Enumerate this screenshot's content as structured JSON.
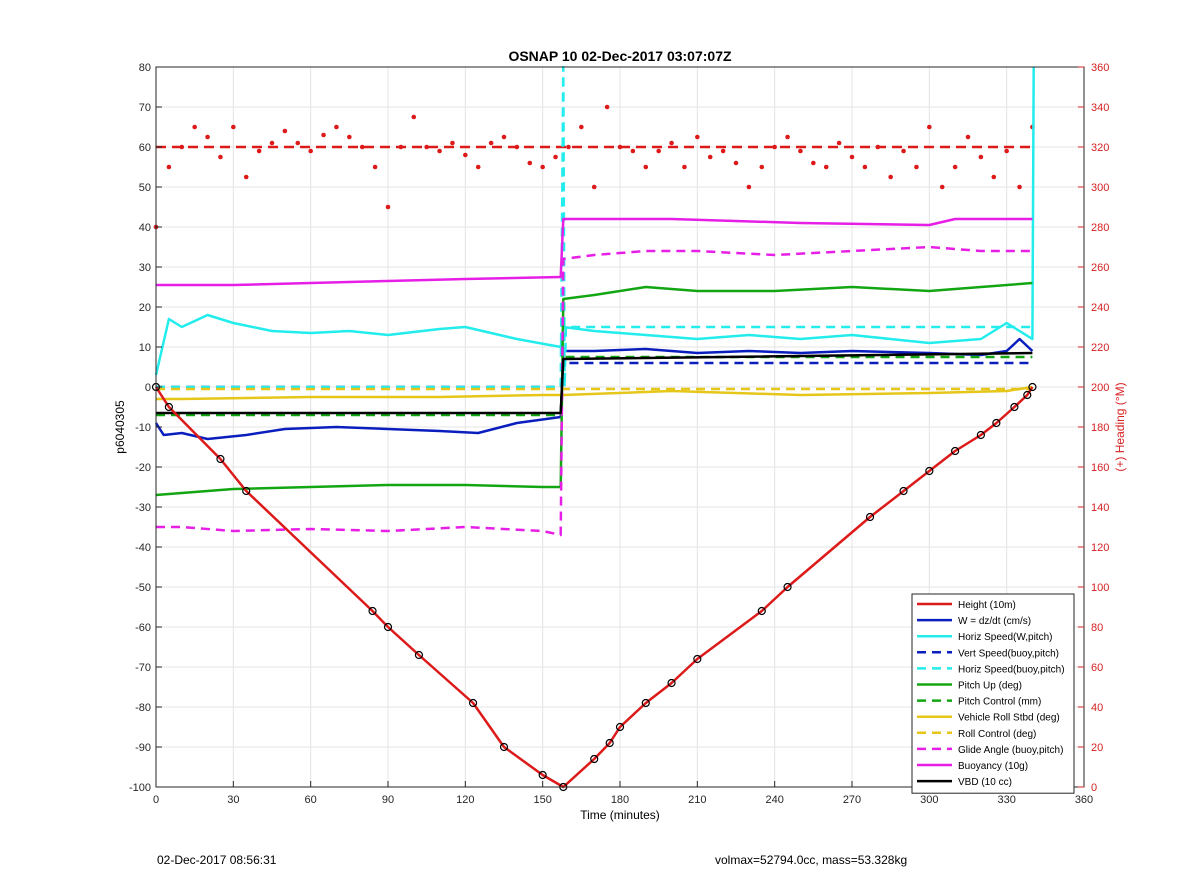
{
  "chart_data": {
    "type": "line",
    "title": "OSNAP 10 02-Dec-2017 03:07:07Z",
    "xlabel": "Time (minutes)",
    "ylabel": "p6040305",
    "y2label": "(+) Heading (°M)",
    "xlim": [
      0,
      360
    ],
    "ylim": [
      -100,
      80
    ],
    "y2lim": [
      0,
      360
    ],
    "xticks": [
      0,
      30,
      60,
      90,
      120,
      150,
      180,
      210,
      240,
      270,
      300,
      330,
      360
    ],
    "yticks": [
      80,
      70,
      60,
      50,
      40,
      30,
      20,
      10,
      0,
      -10,
      -20,
      -30,
      -40,
      -50,
      -60,
      -70,
      -80,
      -90,
      -100
    ],
    "y2ticks": [
      360,
      340,
      320,
      300,
      280,
      260,
      240,
      220,
      200,
      180,
      160,
      140,
      120,
      100,
      80,
      60,
      40,
      20,
      0
    ],
    "grid": true,
    "legend_position": "bottom-right",
    "colors": {
      "red": "#dd1a1a",
      "blue": "#0a1ebe",
      "cyan": "#22ecec",
      "green": "#13a613",
      "yellow": "#e6c619",
      "magenta": "#e61ee6",
      "black": "#000000",
      "heading_axis": "#d62020"
    },
    "series": [
      {
        "name": "Height (10m)",
        "color": "#dd1a1a",
        "style": "solid",
        "x": [
          0,
          5,
          25,
          35,
          84,
          90,
          102,
          123,
          135,
          150,
          158,
          170,
          176,
          180,
          190,
          200,
          210,
          235,
          245,
          277,
          290,
          300,
          310,
          320,
          326,
          333,
          338,
          340
        ],
        "y": [
          0,
          -5,
          -18,
          -26,
          -56,
          -60,
          -67,
          -79,
          -90,
          -97,
          -100,
          -93,
          -89,
          -85,
          -79,
          -74,
          -68,
          -56,
          -50,
          -32.5,
          -26,
          -21,
          -16,
          -12,
          -9,
          -5,
          -2,
          0
        ]
      },
      {
        "name": "W = dz/dt (cm/s)",
        "color": "#0a1ebe",
        "style": "solid",
        "x": [
          0,
          3,
          10,
          20,
          35,
          50,
          70,
          90,
          110,
          125,
          140,
          157,
          158,
          170,
          190,
          210,
          230,
          250,
          270,
          300,
          320,
          330,
          335,
          340
        ],
        "y": [
          -9,
          -12,
          -11.5,
          -13,
          -12,
          -10.5,
          -10,
          -10.5,
          -11,
          -11.5,
          -9,
          -7.5,
          9,
          9,
          9.5,
          8.5,
          9,
          8.5,
          9,
          8.5,
          8,
          9,
          12,
          9
        ]
      },
      {
        "name": "Horiz Speed(W,pitch)",
        "color": "#22ecec",
        "style": "solid",
        "x": [
          0,
          5,
          10,
          20,
          30,
          45,
          60,
          75,
          90,
          110,
          120,
          140,
          157,
          158,
          170,
          190,
          210,
          230,
          250,
          270,
          300,
          320,
          330,
          340,
          340.5
        ],
        "y": [
          3,
          17,
          15,
          18,
          16,
          14,
          13.5,
          14,
          13,
          14.5,
          15,
          12,
          10,
          15,
          14,
          13,
          12,
          13,
          12,
          13,
          11,
          12,
          16,
          12,
          80
        ]
      },
      {
        "name": "Vert Speed(buoy,pitch)",
        "color": "#0a1ebe",
        "style": "dashed",
        "x": [
          0,
          157,
          158,
          340
        ],
        "y": [
          0,
          0,
          6,
          6
        ]
      },
      {
        "name": "Horiz Speed(buoy,pitch)",
        "color": "#22ecec",
        "style": "dashed",
        "x": [
          0,
          157,
          158,
          158.5,
          159,
          340
        ],
        "y": [
          0,
          0,
          80,
          0,
          15,
          15
        ]
      },
      {
        "name": "Pitch Up (deg)",
        "color": "#13a613",
        "style": "solid",
        "x": [
          0,
          10,
          30,
          60,
          90,
          120,
          150,
          157,
          158,
          170,
          190,
          210,
          240,
          270,
          300,
          320,
          340
        ],
        "y": [
          -27,
          -26.5,
          -25.5,
          -25,
          -24.5,
          -24.5,
          -25,
          -25,
          22,
          23,
          25,
          24,
          24,
          25,
          24,
          25,
          26
        ]
      },
      {
        "name": "Pitch Control (mm)",
        "color": "#13a613",
        "style": "dashed",
        "x": [
          0,
          157,
          158,
          340
        ],
        "y": [
          -7,
          -7,
          7.5,
          7.5
        ]
      },
      {
        "name": "Vehicle Roll Stbd (deg)",
        "color": "#e6c619",
        "style": "solid",
        "x": [
          0,
          10,
          60,
          110,
          150,
          157,
          158,
          200,
          250,
          300,
          330,
          340
        ],
        "y": [
          -3,
          -3,
          -2.5,
          -2.5,
          -2,
          -2,
          -2,
          -1,
          -2,
          -1.5,
          -1,
          0
        ]
      },
      {
        "name": "Roll Control (deg)",
        "color": "#e6c619",
        "style": "dashed",
        "x": [
          0,
          340
        ],
        "y": [
          -0.5,
          -0.5
        ]
      },
      {
        "name": "Glide Angle (buoy,pitch)",
        "color": "#e61ee6",
        "style": "dashed",
        "x": [
          0,
          10,
          30,
          60,
          90,
          120,
          150,
          157,
          158,
          170,
          190,
          210,
          240,
          270,
          300,
          320,
          340
        ],
        "y": [
          -35,
          -35,
          -36,
          -35.5,
          -36,
          -35,
          -36,
          -37,
          32,
          33,
          34,
          34,
          33,
          34,
          35,
          34,
          34
        ]
      },
      {
        "name": "Buoyancy (10g)",
        "color": "#e61ee6",
        "style": "solid",
        "x": [
          0,
          30,
          60,
          90,
          120,
          157,
          158,
          200,
          250,
          300,
          310,
          340
        ],
        "y": [
          25.5,
          25.5,
          26,
          26.5,
          27,
          27.5,
          42,
          42,
          41,
          40.5,
          42,
          42
        ]
      },
      {
        "name": "VBD (10 cc)",
        "color": "#000000",
        "style": "solid",
        "x": [
          0,
          157,
          158,
          340
        ],
        "y": [
          -6.5,
          -6.5,
          7,
          8.5
        ]
      }
    ],
    "heading_series": {
      "axis": "right",
      "color": "#dd1a1a",
      "style": "dotted",
      "x": [
        0,
        5,
        10,
        15,
        20,
        25,
        30,
        35,
        40,
        45,
        50,
        55,
        60,
        65,
        70,
        75,
        80,
        85,
        90,
        95,
        100,
        105,
        110,
        115,
        120,
        125,
        130,
        135,
        140,
        145,
        150,
        155,
        160,
        165,
        170,
        175,
        180,
        185,
        190,
        195,
        200,
        205,
        210,
        215,
        220,
        225,
        230,
        235,
        240,
        245,
        250,
        255,
        260,
        265,
        270,
        275,
        280,
        285,
        290,
        295,
        300,
        305,
        310,
        315,
        320,
        325,
        330,
        335,
        340
      ],
      "y": [
        280,
        310,
        320,
        330,
        325,
        315,
        330,
        305,
        318,
        322,
        328,
        322,
        318,
        326,
        330,
        325,
        320,
        310,
        290,
        320,
        335,
        320,
        318,
        322,
        316,
        310,
        322,
        325,
        320,
        312,
        310,
        315,
        320,
        330,
        300,
        340,
        320,
        318,
        310,
        318,
        322,
        310,
        325,
        315,
        318,
        312,
        300,
        310,
        320,
        325,
        318,
        312,
        310,
        322,
        315,
        310,
        320,
        305,
        318,
        310,
        330,
        300,
        310,
        325,
        315,
        305,
        318,
        300,
        330
      ]
    },
    "heading_dashed_line": {
      "y": 320,
      "color": "#dd1a1a",
      "style": "dashed"
    }
  },
  "footer": {
    "timestamp": "02-Dec-2017 08:56:31",
    "info": "volmax=52794.0cc, mass=53.328kg"
  }
}
